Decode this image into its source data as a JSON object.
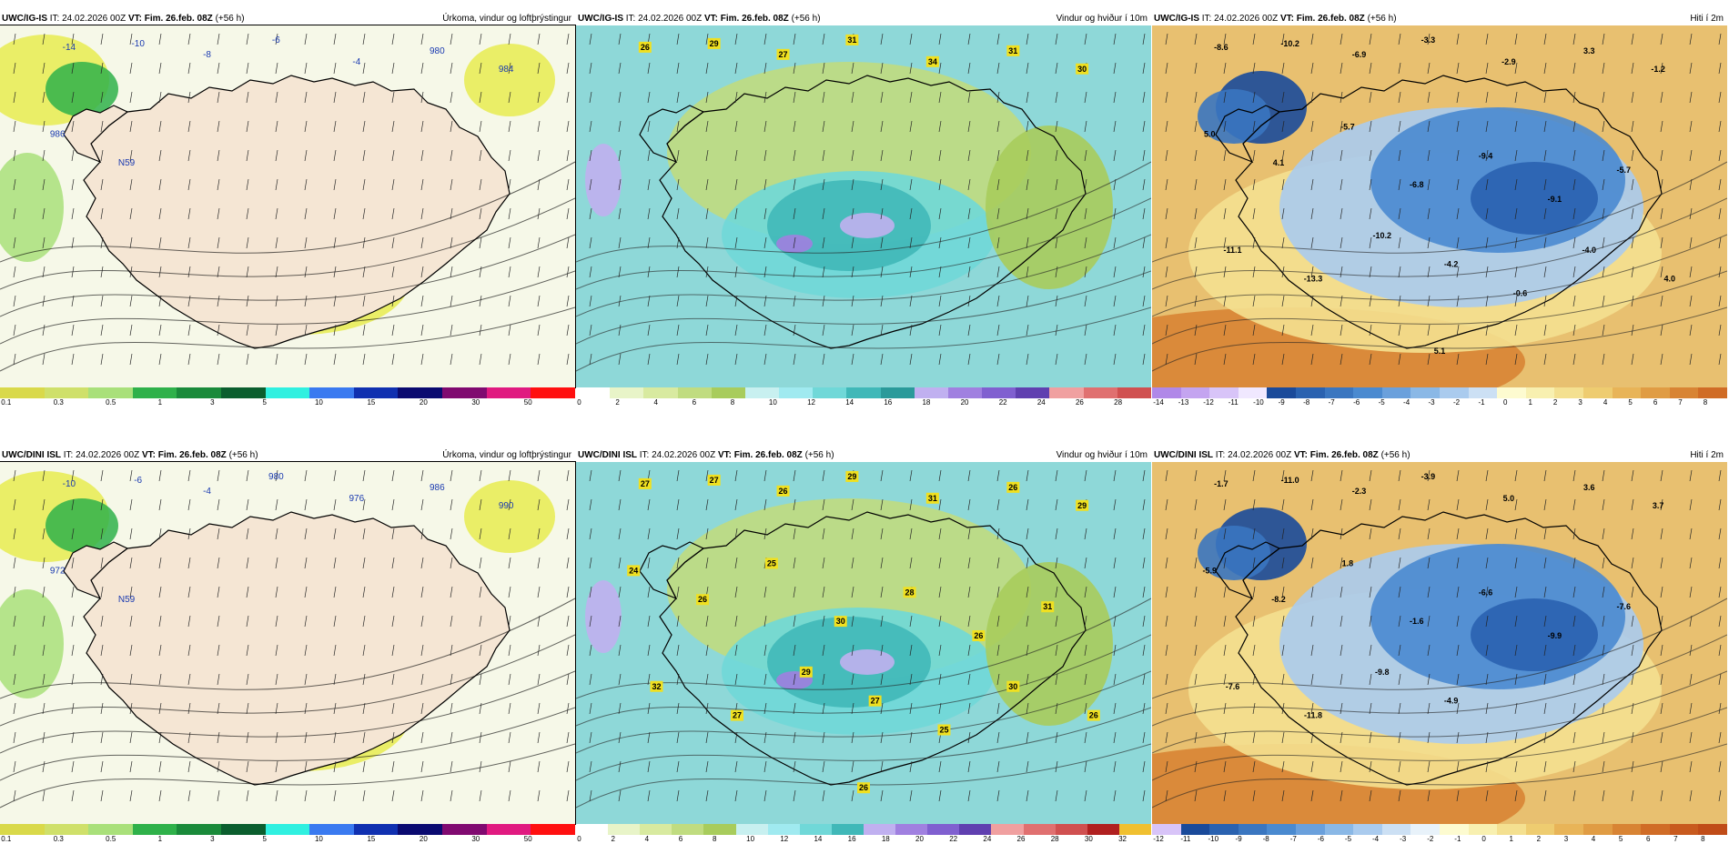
{
  "panels": [
    {
      "model": "UWC/IG-IS",
      "it_label": "IT:",
      "it": "24.02.2026 00Z",
      "vt_label": "VT:",
      "vt": "Fim. 26.feb. 08Z",
      "lead": "(+56 h)",
      "title": "Úrkoma, vindur og loftþrýstingur",
      "kind": "precip",
      "labels": [
        "-14",
        "-10",
        "-8",
        "-6",
        "-4",
        "980",
        "984",
        "986",
        "N59"
      ],
      "colorbar": {
        "colors": [
          "#d9d94a",
          "#cfe06a",
          "#a9e07a",
          "#2fb14a",
          "#1a8a3a",
          "#0b5e2e",
          "#30f0e0",
          "#3a7af0",
          "#1030b0",
          "#0a0a70",
          "#800a70",
          "#e01a80",
          "#ff1010"
        ],
        "ticks": [
          "0.1",
          "0.3",
          "0.5",
          "1",
          "3",
          "5",
          "10",
          "15",
          "20",
          "30",
          "50"
        ]
      }
    },
    {
      "model": "UWC/IG-IS",
      "it_label": "IT:",
      "it": "24.02.2026 00Z",
      "vt_label": "VT:",
      "vt": "Fim. 26.feb. 08Z",
      "lead": "(+56 h)",
      "title": "Vindur og hviður í 10m",
      "kind": "wind",
      "labels": [
        "26",
        "29",
        "27",
        "31",
        "34",
        "31",
        "30"
      ],
      "colorbar": {
        "colors": [
          "#ffffff",
          "#e8f4c8",
          "#d8eaa0",
          "#c0dc80",
          "#a8cc5c",
          "#c8f0f0",
          "#a0eaf0",
          "#70d8d8",
          "#40b8b8",
          "#2a9a9a",
          "#c0b0f0",
          "#a080e0",
          "#8060d0",
          "#6040b0",
          "#f0a0a0",
          "#e07070",
          "#d05050"
        ],
        "ticks": [
          "0",
          "2",
          "4",
          "6",
          "8",
          "10",
          "12",
          "14",
          "16",
          "18",
          "20",
          "22",
          "24",
          "26",
          "28"
        ]
      }
    },
    {
      "model": "UWC/IG-IS",
      "it_label": "IT:",
      "it": "24.02.2026 00Z",
      "vt_label": "VT:",
      "vt": "Fim. 26.feb. 08Z",
      "lead": "(+56 h)",
      "title": "Hiti í 2m",
      "kind": "temp",
      "labels": [
        "-8.6",
        "-10.2",
        "-6.9",
        "-3.3",
        "-2.9",
        "3.3",
        "-1.2",
        "5.0",
        "4.1",
        "-5.7",
        "-6.8",
        "-9.4",
        "-9.1",
        "-5.7",
        "-11.1",
        "-13.3",
        "-10.2",
        "-4.2",
        "-0.6",
        "-4.0",
        "4.0",
        "5.1"
      ],
      "colorbar": {
        "colors": [
          "#b088e8",
          "#c4a4f0",
          "#d8c4f8",
          "#f0e8ff",
          "#1a4a9a",
          "#2a62b0",
          "#3a76c0",
          "#4a8ad0",
          "#6aa0dc",
          "#8ab8e6",
          "#aacbee",
          "#cce0f4",
          "#fdfbd0",
          "#f8f0b0",
          "#f4e090",
          "#eecc70",
          "#e8b458",
          "#e09c44",
          "#d88434",
          "#d06c26"
        ],
        "ticks": [
          "-14",
          "-13",
          "-12",
          "-11",
          "-10",
          "-9",
          "-8",
          "-7",
          "-6",
          "-5",
          "-4",
          "-3",
          "-2",
          "-1",
          "0",
          "1",
          "2",
          "3",
          "4",
          "5",
          "6",
          "7",
          "8"
        ]
      }
    },
    {
      "model": "UWC/DINI ISL",
      "it_label": "IT:",
      "it": "24.02.2026 00Z",
      "vt_label": "VT:",
      "vt": "Fim. 26.feb. 08Z",
      "lead": "(+56 h)",
      "title": "Úrkoma, vindur og loftþrýstingur",
      "kind": "precip",
      "labels": [
        "-10",
        "-6",
        "-4",
        "980",
        "976",
        "986",
        "990",
        "972",
        "N59"
      ],
      "colorbar": {
        "colors": [
          "#d9d94a",
          "#cfe06a",
          "#a9e07a",
          "#2fb14a",
          "#1a8a3a",
          "#0b5e2e",
          "#30f0e0",
          "#3a7af0",
          "#1030b0",
          "#0a0a70",
          "#800a70",
          "#e01a80",
          "#ff1010"
        ],
        "ticks": [
          "0.1",
          "0.3",
          "0.5",
          "1",
          "3",
          "5",
          "10",
          "15",
          "20",
          "30",
          "50"
        ]
      }
    },
    {
      "model": "UWC/DINI ISL",
      "it_label": "IT:",
      "it": "24.02.2026 00Z",
      "vt_label": "VT:",
      "vt": "Fim. 26.feb. 08Z",
      "lead": "(+56 h)",
      "title": "Vindur og hviður í 10m",
      "kind": "wind",
      "labels": [
        "27",
        "27",
        "26",
        "29",
        "31",
        "26",
        "29",
        "24",
        "26",
        "25",
        "30",
        "28",
        "26",
        "31",
        "32",
        "27",
        "29",
        "27",
        "25",
        "30",
        "26",
        "26"
      ],
      "colorbar": {
        "colors": [
          "#ffffff",
          "#e8f4c8",
          "#d8eaa0",
          "#c0dc80",
          "#a8cc5c",
          "#c8f0f0",
          "#a0eaf0",
          "#70d8d8",
          "#40b8b8",
          "#c0b0f0",
          "#a080e0",
          "#8060d0",
          "#6040b0",
          "#f0a0a0",
          "#e07070",
          "#d05050",
          "#b02020",
          "#f0c030"
        ],
        "ticks": [
          "0",
          "2",
          "4",
          "6",
          "8",
          "10",
          "12",
          "14",
          "16",
          "18",
          "20",
          "22",
          "24",
          "26",
          "28",
          "30",
          "32"
        ]
      }
    },
    {
      "model": "UWC/DINI ISL",
      "it_label": "IT:",
      "it": "24.02.2026 00Z",
      "vt_label": "VT:",
      "vt": "Fim. 26.feb. 08Z",
      "lead": "(+56 h)",
      "title": "Hiti í 2m",
      "kind": "temp",
      "labels": [
        "-1.7",
        "-11.0",
        "-2.3",
        "-3.9",
        "5.0",
        "3.6",
        "3.7",
        "-5.9",
        "-8.2",
        "1.8",
        "-1.6",
        "-6.6",
        "-9.9",
        "-7.6",
        "-7.6",
        "-11.8",
        "-9.8",
        "-4.9"
      ],
      "colorbar": {
        "colors": [
          "#d8c4f8",
          "#1a4a9a",
          "#2a62b0",
          "#3a76c0",
          "#4a8ad0",
          "#6aa0dc",
          "#8ab8e6",
          "#aacbee",
          "#cce0f4",
          "#e8f2fa",
          "#fdfbd0",
          "#f8f0b0",
          "#f4e090",
          "#eecc70",
          "#e8b458",
          "#e09c44",
          "#d88434",
          "#d06c26",
          "#c85a1e",
          "#c04c18"
        ],
        "ticks": [
          "-12",
          "-11",
          "-10",
          "-9",
          "-8",
          "-7",
          "-6",
          "-5",
          "-4",
          "-3",
          "-2",
          "-1",
          "0",
          "1",
          "2",
          "3",
          "4",
          "5",
          "6",
          "7",
          "8"
        ]
      }
    }
  ]
}
